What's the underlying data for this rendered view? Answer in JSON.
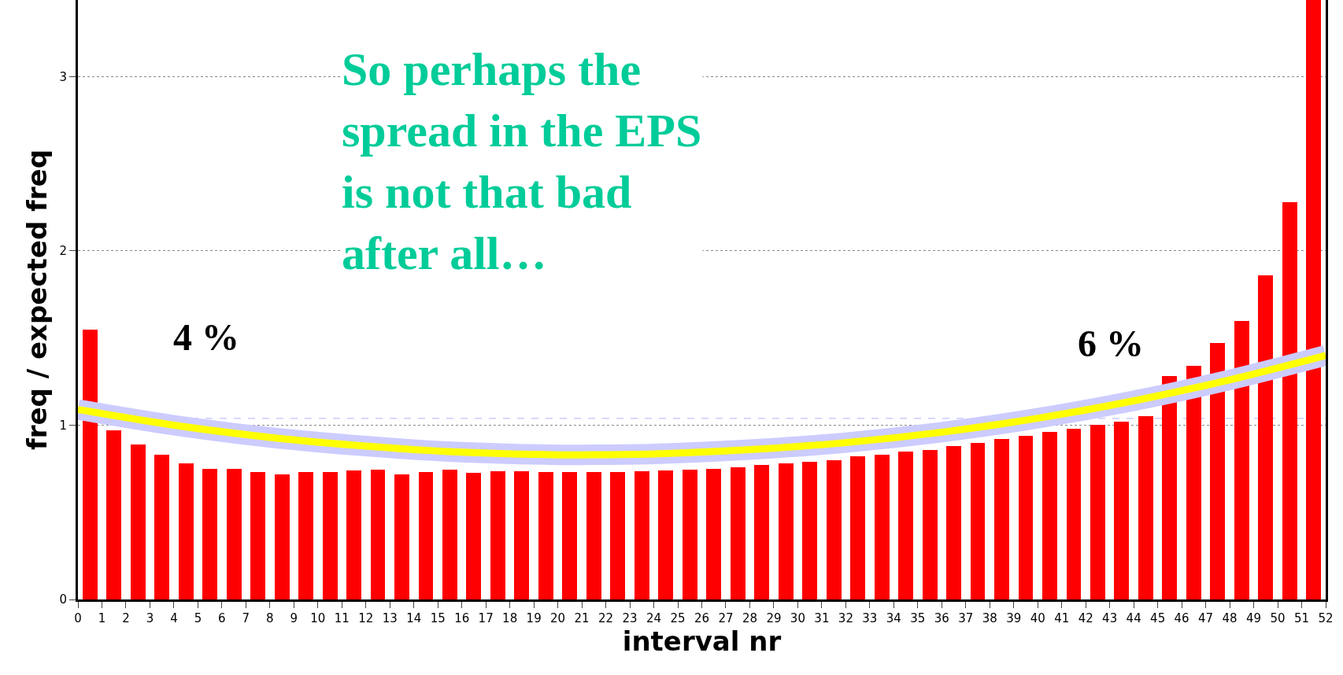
{
  "chart_data": {
    "type": "histogram",
    "xlabel": "interval nr",
    "ylabel": "freq / expected freq",
    "bins": [
      0,
      1,
      2,
      3,
      4,
      5,
      6,
      7,
      8,
      9,
      10,
      11,
      12,
      13,
      14,
      15,
      16,
      17,
      18,
      19,
      20,
      21,
      22,
      23,
      24,
      25,
      26,
      27,
      28,
      29,
      30,
      31,
      32,
      33,
      34,
      35,
      36,
      37,
      38,
      39,
      40,
      41,
      42,
      43,
      44,
      45,
      46,
      47,
      48,
      49,
      50,
      51,
      52
    ],
    "values": [
      1.55,
      0.97,
      0.89,
      0.83,
      0.78,
      0.75,
      0.75,
      0.73,
      0.72,
      0.73,
      0.73,
      0.74,
      0.745,
      0.72,
      0.73,
      0.745,
      0.725,
      0.735,
      0.735,
      0.73,
      0.73,
      0.73,
      0.73,
      0.735,
      0.74,
      0.745,
      0.75,
      0.76,
      0.77,
      0.78,
      0.79,
      0.8,
      0.82,
      0.83,
      0.85,
      0.86,
      0.88,
      0.9,
      0.92,
      0.94,
      0.96,
      0.98,
      1.0,
      1.02,
      1.05,
      1.28,
      1.34,
      1.47,
      1.6,
      1.86,
      2.28,
      3.44
    ],
    "color": "#ff0000",
    "series": [
      {
        "type": "line",
        "color": "#ffff00",
        "x": [
          0,
          4,
          8,
          12,
          16,
          20,
          21,
          24,
          28,
          32,
          36,
          40,
          44,
          48,
          52
        ],
        "values": [
          1.09,
          1.0,
          0.93,
          0.88,
          0.845,
          0.83,
          0.83,
          0.835,
          0.86,
          0.9,
          0.96,
          1.04,
          1.14,
          1.26,
          1.4
        ]
      }
    ],
    "ref_lines": [
      {
        "axis": "y",
        "value": 1.04,
        "color": "#ccccff",
        "line_style": "dashed"
      }
    ],
    "annotations": [
      "4 %",
      "6 %",
      "So perhaps the\nspread in the EPS\nis not that bad\nafter all…"
    ],
    "xlim": [
      0,
      52
    ],
    "xticks": [
      0,
      1,
      2,
      3,
      4,
      5,
      6,
      7,
      8,
      9,
      10,
      11,
      12,
      13,
      14,
      15,
      16,
      17,
      18,
      19,
      20,
      21,
      22,
      23,
      24,
      25,
      26,
      27,
      28,
      29,
      30,
      31,
      32,
      33,
      34,
      35,
      36,
      37,
      38,
      39,
      40,
      41,
      42,
      43,
      44,
      45,
      46,
      47,
      48,
      49,
      50,
      51,
      52
    ],
    "ylim": [
      0,
      3.44
    ],
    "yticks": [
      0,
      1,
      2,
      3
    ],
    "grid": "y"
  }
}
